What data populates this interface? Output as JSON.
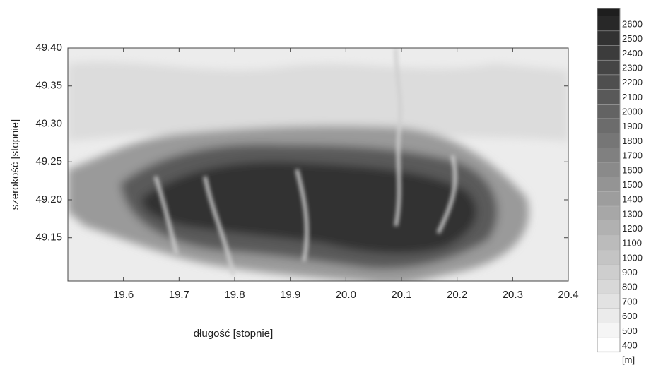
{
  "chart_data": {
    "type": "contour",
    "xlabel": "długość  [stopnie]",
    "ylabel": "szerokość  [stopnie]",
    "xlim": [
      19.5,
      20.4
    ],
    "xticks": [
      19.6,
      19.7,
      19.8,
      19.9,
      {
        "value": 20,
        "label": "20.0"
      },
      20.1,
      20.2,
      20.3,
      20.4
    ],
    "ylim": [
      49.093,
      49.4
    ],
    "yticks": [
      49.15,
      {
        "value": 49.2,
        "label": "49.20"
      },
      49.25,
      {
        "value": 49.3,
        "label": "49.30"
      },
      49.35,
      {
        "value": 49.4,
        "label": "49.40"
      }
    ],
    "levels": [
      400,
      500,
      600,
      700,
      800,
      900,
      1000,
      1100,
      1200,
      1300,
      1400,
      1500,
      1600,
      1700,
      1800,
      1900,
      2000,
      2100,
      2200,
      2300,
      2400,
      2500,
      2600
    ],
    "colorbar_unit": "[m]"
  }
}
